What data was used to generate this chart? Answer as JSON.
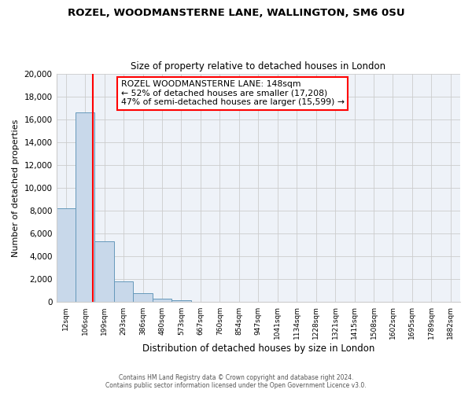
{
  "title": "ROZEL, WOODMANSTERNE LANE, WALLINGTON, SM6 0SU",
  "subtitle": "Size of property relative to detached houses in London",
  "xlabel": "Distribution of detached houses by size in London",
  "ylabel": "Number of detached properties",
  "categories": [
    "12sqm",
    "106sqm",
    "199sqm",
    "293sqm",
    "386sqm",
    "480sqm",
    "573sqm",
    "667sqm",
    "760sqm",
    "854sqm",
    "947sqm",
    "1041sqm",
    "1134sqm",
    "1228sqm",
    "1321sqm",
    "1415sqm",
    "1508sqm",
    "1602sqm",
    "1695sqm",
    "1789sqm",
    "1882sqm"
  ],
  "values": [
    8200,
    16600,
    5300,
    1850,
    800,
    280,
    200,
    0,
    0,
    0,
    0,
    0,
    0,
    0,
    0,
    0,
    0,
    0,
    0,
    0,
    0
  ],
  "bar_color": "#c8d8ea",
  "bar_edge_color": "#6699bb",
  "red_line_x": 1.42,
  "annotation_title": "ROZEL WOODMANSTERNE LANE: 148sqm",
  "annotation_line1": "← 52% of detached houses are smaller (17,208)",
  "annotation_line2": "47% of semi-detached houses are larger (15,599) →",
  "ylim": [
    0,
    20000
  ],
  "yticks": [
    0,
    2000,
    4000,
    6000,
    8000,
    10000,
    12000,
    14000,
    16000,
    18000,
    20000
  ],
  "footer1": "Contains HM Land Registry data © Crown copyright and database right 2024.",
  "footer2": "Contains public sector information licensed under the Open Government Licence v3.0.",
  "background_color": "#ffffff",
  "plot_bg_color": "#eef2f8",
  "grid_color": "#cccccc"
}
